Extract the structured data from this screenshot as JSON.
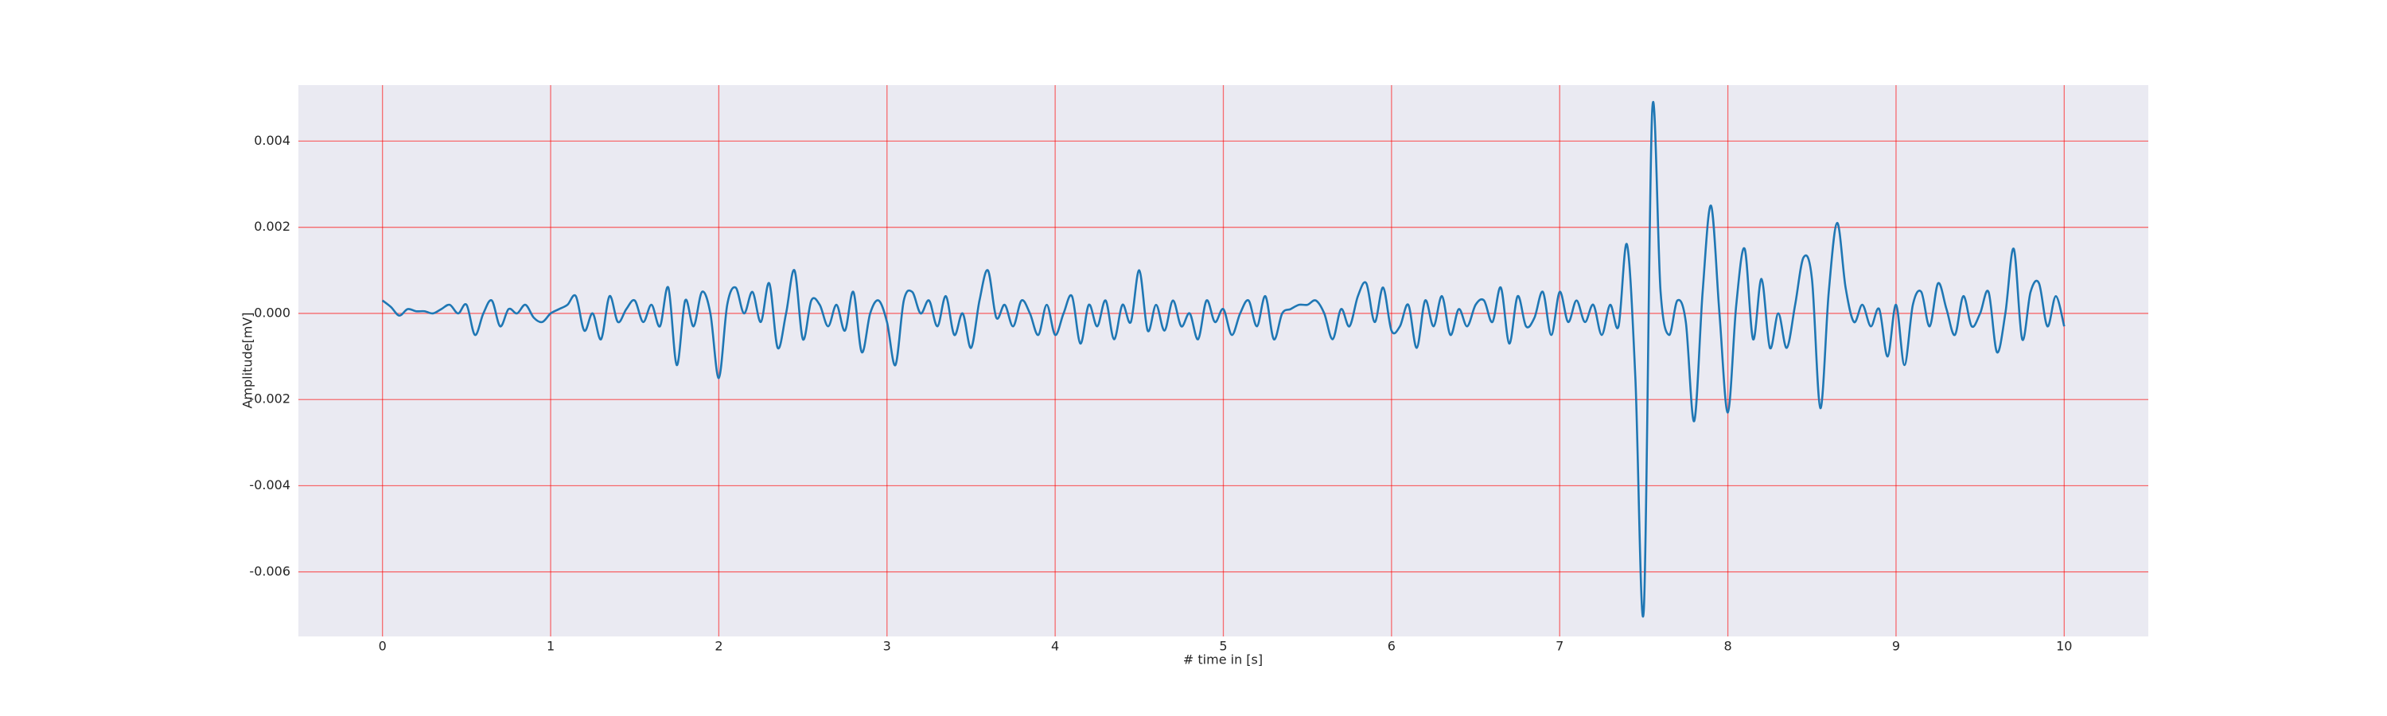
{
  "chart_data": {
    "type": "line",
    "xlabel": "# time in [s]",
    "ylabel": "Amplitude[mV]",
    "color": "#1f77b4",
    "background": "#eaeaf2",
    "grid": true,
    "xlim": [
      -0.5,
      10.5
    ],
    "ylim": [
      -0.0075,
      0.0053
    ],
    "xticks": [
      0,
      1,
      2,
      3,
      4,
      5,
      6,
      7,
      8,
      9,
      10
    ],
    "yticks": [
      -0.006,
      -0.004,
      -0.002,
      {
        "value": 0,
        "label": "0.000"
      },
      0.002,
      0.004
    ],
    "x": [
      0,
      0.05,
      0.1,
      0.15,
      0.2,
      0.25,
      0.3,
      0.35,
      0.4,
      0.45,
      0.5,
      0.55,
      0.6,
      0.65,
      0.7,
      0.75,
      0.8,
      0.85,
      0.9,
      0.95,
      1,
      1.05,
      1.1,
      1.15,
      1.2,
      1.25,
      1.3,
      1.35,
      1.4,
      1.45,
      1.5,
      1.55,
      1.6,
      1.65,
      1.7,
      1.75,
      1.8,
      1.85,
      1.9,
      1.95,
      2,
      2.05,
      2.1,
      2.15,
      2.2,
      2.25,
      2.3,
      2.35,
      2.4,
      2.45,
      2.5,
      2.55,
      2.6,
      2.65,
      2.7,
      2.75,
      2.8,
      2.85,
      2.9,
      2.95,
      3,
      3.05,
      3.1,
      3.15,
      3.2,
      3.25,
      3.3,
      3.35,
      3.4,
      3.45,
      3.5,
      3.55,
      3.6,
      3.65,
      3.7,
      3.75,
      3.8,
      3.85,
      3.9,
      3.95,
      4,
      4.05,
      4.1,
      4.15,
      4.2,
      4.25,
      4.3,
      4.35,
      4.4,
      4.45,
      4.5,
      4.55,
      4.6,
      4.65,
      4.7,
      4.75,
      4.8,
      4.85,
      4.9,
      4.95,
      5,
      5.05,
      5.1,
      5.15,
      5.2,
      5.25,
      5.3,
      5.35,
      5.4,
      5.45,
      5.5,
      5.55,
      5.6,
      5.65,
      5.7,
      5.75,
      5.8,
      5.85,
      5.9,
      5.95,
      6,
      6.05,
      6.1,
      6.15,
      6.2,
      6.25,
      6.3,
      6.35,
      6.4,
      6.45,
      6.5,
      6.55,
      6.6,
      6.65,
      6.7,
      6.75,
      6.8,
      6.85,
      6.9,
      6.95,
      7,
      7.05,
      7.1,
      7.15,
      7.2,
      7.25,
      7.3,
      7.35,
      7.4,
      7.45,
      7.5,
      7.55,
      7.6,
      7.65,
      7.7,
      7.75,
      7.8,
      7.85,
      7.9,
      7.95,
      8,
      8.05,
      8.1,
      8.15,
      8.2,
      8.25,
      8.3,
      8.35,
      8.4,
      8.45,
      8.5,
      8.55,
      8.6,
      8.65,
      8.7,
      8.75,
      8.8,
      8.85,
      8.9,
      8.95,
      9,
      9.05,
      9.1,
      9.15,
      9.2,
      9.25,
      9.3,
      9.35,
      9.4,
      9.45,
      9.5,
      9.55,
      9.6,
      9.65,
      9.7,
      9.75,
      9.8,
      9.85,
      9.9,
      9.95,
      10
    ],
    "values": [
      0.0003,
      0.00015,
      -5e-05,
      0.0001,
      5e-05,
      5e-05,
      0,
      0.0001,
      0.0002,
      0,
      0.0002,
      -0.0005,
      0,
      0.0003,
      -0.0003,
      0.0001,
      0,
      0.0002,
      -0.0001,
      -0.0002,
      0,
      0.0001,
      0.0002,
      0.0004,
      -0.0004,
      0,
      -0.0006,
      0.0004,
      -0.0002,
      0.0001,
      0.0003,
      -0.0002,
      0.0002,
      -0.0003,
      0.0006,
      -0.0012,
      0.0003,
      -0.0003,
      0.0005,
      0,
      -0.0015,
      0.0002,
      0.0006,
      0,
      0.0005,
      -0.0002,
      0.0007,
      -0.0008,
      0,
      0.001,
      -0.0006,
      0.0003,
      0.0002,
      -0.0003,
      0.0002,
      -0.0004,
      0.0005,
      -0.0009,
      0,
      0.0003,
      -0.0002,
      -0.0012,
      0.0003,
      0.0005,
      0,
      0.0003,
      -0.0003,
      0.0004,
      -0.0005,
      0,
      -0.0008,
      0.0003,
      0.001,
      -0.0001,
      0.0002,
      -0.0003,
      0.0003,
      0,
      -0.0005,
      0.0002,
      -0.0005,
      0,
      0.0004,
      -0.0007,
      0.0002,
      -0.0003,
      0.0003,
      -0.0006,
      0.0002,
      -0.0002,
      0.001,
      -0.0004,
      0.0002,
      -0.0004,
      0.0003,
      -0.0003,
      0,
      -0.0006,
      0.0003,
      -0.0002,
      0.0001,
      -0.0005,
      0,
      0.0003,
      -0.0003,
      0.0004,
      -0.0006,
      0,
      0.0001,
      0.0002,
      0.0002,
      0.0003,
      0,
      -0.0006,
      0.0001,
      -0.0003,
      0.0004,
      0.0007,
      -0.0002,
      0.0006,
      -0.0004,
      -0.0003,
      0.0002,
      -0.0008,
      0.0003,
      -0.0003,
      0.0004,
      -0.0005,
      0.0001,
      -0.0003,
      0.0002,
      0.0003,
      -0.0002,
      0.0006,
      -0.0007,
      0.0004,
      -0.0003,
      -0.0001,
      0.0005,
      -0.0005,
      0.0005,
      -0.0002,
      0.0003,
      -0.0002,
      0.0002,
      -0.0005,
      0.0002,
      -0.0003,
      0.0016,
      -0.0015,
      -0.0069,
      0.0047,
      0.0005,
      -0.0005,
      0.0003,
      -0.0002,
      -0.0025,
      0.0005,
      0.0025,
      0,
      -0.0023,
      0.0002,
      0.0015,
      -0.0006,
      0.0008,
      -0.0008,
      0,
      -0.0008,
      0.0002,
      0.0013,
      0.0008,
      -0.0022,
      0.0005,
      0.0021,
      0.0006,
      -0.0002,
      0.0002,
      -0.0003,
      0.0001,
      -0.001,
      0.0002,
      -0.0012,
      0.0002,
      0.0005,
      -0.0003,
      0.0007,
      0.0001,
      -0.0005,
      0.0004,
      -0.0003,
      0,
      0.0005,
      -0.0009,
      0,
      0.0015,
      -0.0006,
      0.0005,
      0.0007,
      -0.0003,
      0.0004,
      -0.0003
    ]
  }
}
